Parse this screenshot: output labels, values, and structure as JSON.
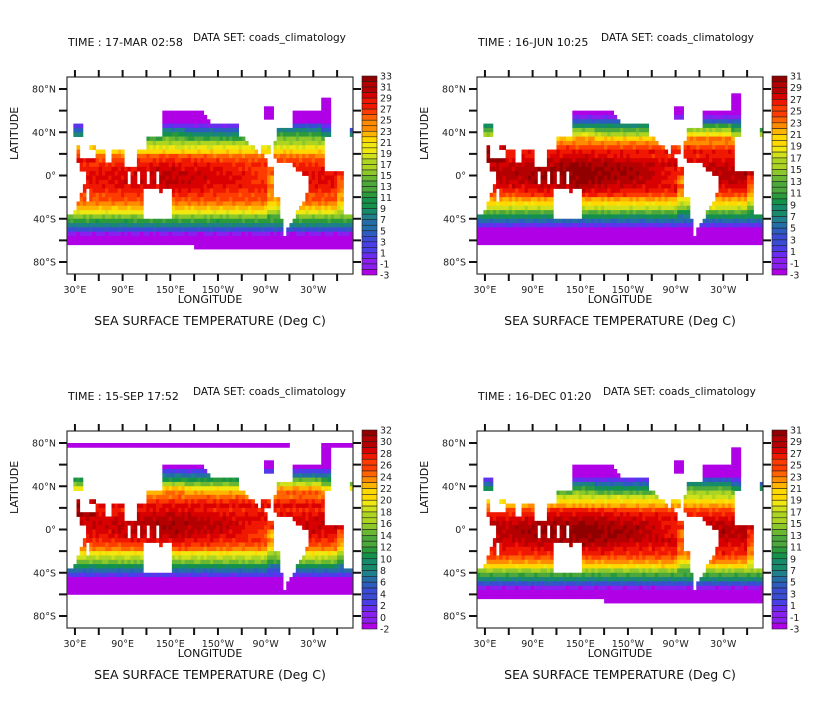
{
  "chart_data": [
    {
      "type": "heatmap",
      "time_label": "TIME : 17-MAR 02:58",
      "dataset_label": "DATA SET: coads_climatology",
      "title": "SEA SURFACE TEMPERATURE (Deg C)",
      "xlabel": "LONGITUDE",
      "ylabel": "LATITUDE",
      "xticks": [
        "30°E",
        "90°E",
        "150°E",
        "150°W",
        "90°W",
        "30°W"
      ],
      "yticks": [
        "80°N",
        "40°N",
        "0°",
        "40°S",
        "80°S"
      ],
      "colorbar_levels": [
        "33",
        "31",
        "29",
        "27",
        "25",
        "23",
        "21",
        "19",
        "17",
        "15",
        "13",
        "11",
        "9",
        "7",
        "5",
        "3",
        "1",
        "-1",
        "-3"
      ],
      "clim": [
        -3,
        33
      ],
      "season": 0
    },
    {
      "type": "heatmap",
      "time_label": "TIME : 16-JUN 10:25",
      "dataset_label": "DATA SET: coads_climatology",
      "title": "SEA SURFACE TEMPERATURE (Deg C)",
      "xlabel": "LONGITUDE",
      "ylabel": "LATITUDE",
      "xticks": [
        "30°E",
        "90°E",
        "150°E",
        "150°W",
        "90°W",
        "30°W"
      ],
      "yticks": [
        "80°N",
        "40°N",
        "0°",
        "40°S",
        "80°S"
      ],
      "colorbar_levels": [
        "31",
        "29",
        "27",
        "25",
        "23",
        "21",
        "19",
        "17",
        "15",
        "13",
        "11",
        "9",
        "7",
        "5",
        "3",
        "1",
        "-1",
        "-3"
      ],
      "clim": [
        -3,
        31
      ],
      "season": 1
    },
    {
      "type": "heatmap",
      "time_label": "TIME : 15-SEP 17:52",
      "dataset_label": "DATA SET: coads_climatology",
      "title": "SEA SURFACE TEMPERATURE (Deg C)",
      "xlabel": "LONGITUDE",
      "ylabel": "LATITUDE",
      "xticks": [
        "30°E",
        "90°E",
        "150°E",
        "150°W",
        "90°W",
        "30°W"
      ],
      "yticks": [
        "80°N",
        "40°N",
        "0°",
        "40°S",
        "80°S"
      ],
      "colorbar_levels": [
        "32",
        "30",
        "28",
        "26",
        "24",
        "22",
        "20",
        "18",
        "16",
        "14",
        "12",
        "10",
        "8",
        "6",
        "4",
        "2",
        "0",
        "-2"
      ],
      "clim": [
        -2,
        32
      ],
      "season": 2
    },
    {
      "type": "heatmap",
      "time_label": "TIME : 16-DEC 01:20",
      "dataset_label": "DATA SET: coads_climatology",
      "title": "SEA SURFACE TEMPERATURE (Deg C)",
      "xlabel": "LONGITUDE",
      "ylabel": "LATITUDE",
      "xticks": [
        "30°E",
        "90°E",
        "150°E",
        "150°W",
        "90°W",
        "30°W"
      ],
      "yticks": [
        "80°N",
        "40°N",
        "0°",
        "40°S",
        "80°S"
      ],
      "colorbar_levels": [
        "31",
        "29",
        "27",
        "25",
        "23",
        "21",
        "19",
        "17",
        "15",
        "13",
        "11",
        "9",
        "7",
        "5",
        "3",
        "1",
        "-1",
        "-3"
      ],
      "clim": [
        -3,
        31
      ],
      "season": 3
    }
  ],
  "palette": [
    "#b000e6",
    "#8a1ff0",
    "#6a2cf0",
    "#4a3ee8",
    "#3a4cd6",
    "#2d5cc0",
    "#246ea8",
    "#1f7f8c",
    "#168a6a",
    "#14924a",
    "#2a9a3a",
    "#4ca83a",
    "#6ab832",
    "#8cc82a",
    "#aed422",
    "#d0e01a",
    "#f0e810",
    "#ffd800",
    "#ffb400",
    "#ff8c00",
    "#ff6400",
    "#ff3c00",
    "#f01800",
    "#d80000",
    "#b40000",
    "#900000"
  ]
}
